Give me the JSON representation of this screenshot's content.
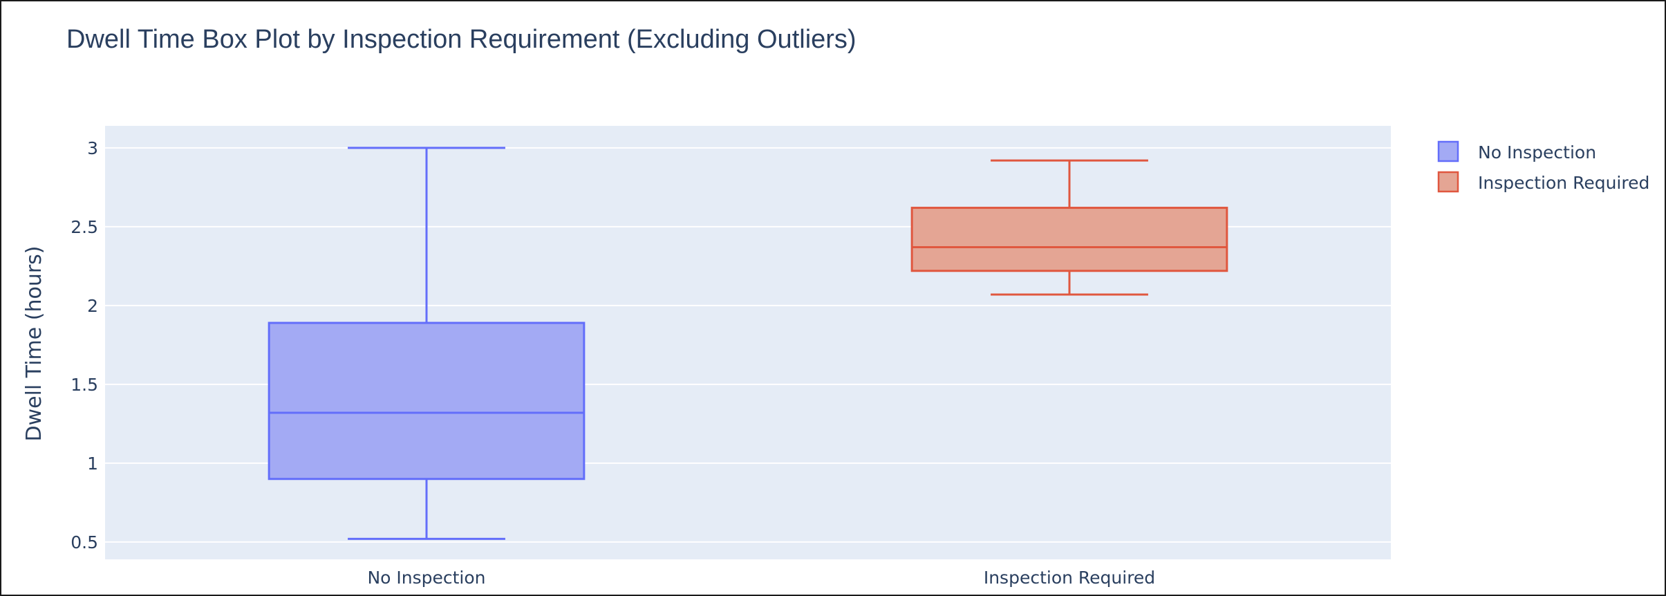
{
  "chart_data": {
    "type": "box",
    "title": "Dwell Time Box Plot by Inspection Requirement (Excluding Outliers)",
    "xlabel": "",
    "ylabel": "Dwell Time (hours)",
    "ylim": [
      0.39,
      3.14
    ],
    "yticks": [
      0.5,
      1,
      1.5,
      2,
      2.5,
      3
    ],
    "ytick_labels": [
      "0.5",
      "1",
      "1.5",
      "2",
      "2.5",
      "3"
    ],
    "grid": true,
    "legend_position": "top-right",
    "categories": [
      "No Inspection",
      "Inspection Required"
    ],
    "series": [
      {
        "name": "No Inspection",
        "color": "#636efa",
        "fill": "#a3aaf4",
        "min": 0.52,
        "q1": 0.9,
        "median": 1.32,
        "q3": 1.89,
        "max": 3.0
      },
      {
        "name": "Inspection Required",
        "color": "#e0573f",
        "fill": "#e4a594",
        "min": 2.07,
        "q1": 2.22,
        "median": 2.37,
        "q3": 2.62,
        "max": 2.92
      }
    ]
  }
}
